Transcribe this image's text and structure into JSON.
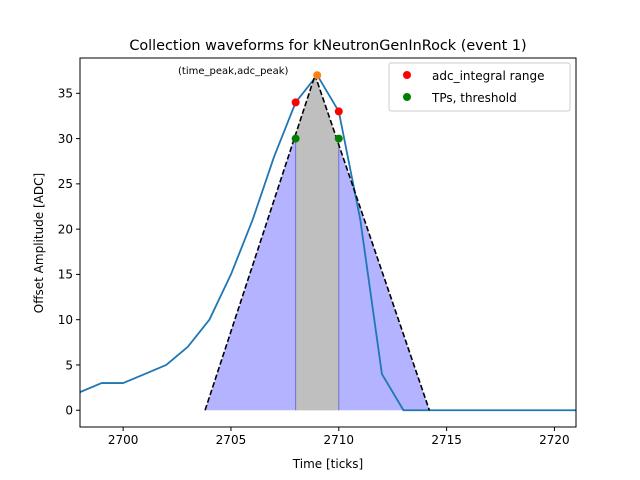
{
  "chart_data": {
    "type": "line",
    "title": "Collection waveforms for kNeutronGenInRock (event 1)",
    "xlabel": "Time [ticks]",
    "ylabel": "Offset Amplitude [ADC]",
    "xlim": [
      2698,
      2721
    ],
    "ylim": [
      -1.85,
      38.9
    ],
    "xticks": [
      2700,
      2705,
      2710,
      2715,
      2720
    ],
    "yticks": [
      0,
      5,
      10,
      15,
      20,
      25,
      30,
      35
    ],
    "grid": false,
    "legend_position": "top-right",
    "waveform": {
      "color": "#1f77b4",
      "x": [
        2698,
        2699,
        2700,
        2701,
        2702,
        2703,
        2704,
        2705,
        2706,
        2707,
        2708,
        2709,
        2710,
        2711,
        2712,
        2713,
        2714,
        2715,
        2716,
        2717,
        2718,
        2719,
        2720,
        2721
      ],
      "y": [
        2,
        3,
        3,
        4,
        5,
        7,
        10,
        15,
        21,
        28,
        34,
        37,
        33,
        21,
        4,
        0,
        0,
        0,
        0,
        0,
        0,
        0,
        0,
        0
      ]
    },
    "triangle": {
      "x": [
        2703.8,
        2708.9,
        2714.2
      ],
      "y": [
        0,
        37,
        0
      ],
      "line_color": "#000000",
      "fill_color": "#b3b3ff",
      "edge_color": "#7070cc"
    },
    "integral_region": {
      "x_start": 2708,
      "x_end": 2710,
      "fill_color": "#bfbfbf"
    },
    "adc_integral_points": {
      "name": "adc_integral range",
      "color": "#ff0000",
      "x": [
        2708,
        2710
      ],
      "y": [
        34,
        33
      ]
    },
    "threshold_points": {
      "name": "TPs, threshold",
      "color": "#008000",
      "x": [
        2708,
        2710
      ],
      "y": [
        30,
        30
      ]
    },
    "peak_point": {
      "color": "#ff7f0e",
      "x": 2709,
      "y": 37,
      "label": "(time_peak,adc_peak)"
    }
  }
}
